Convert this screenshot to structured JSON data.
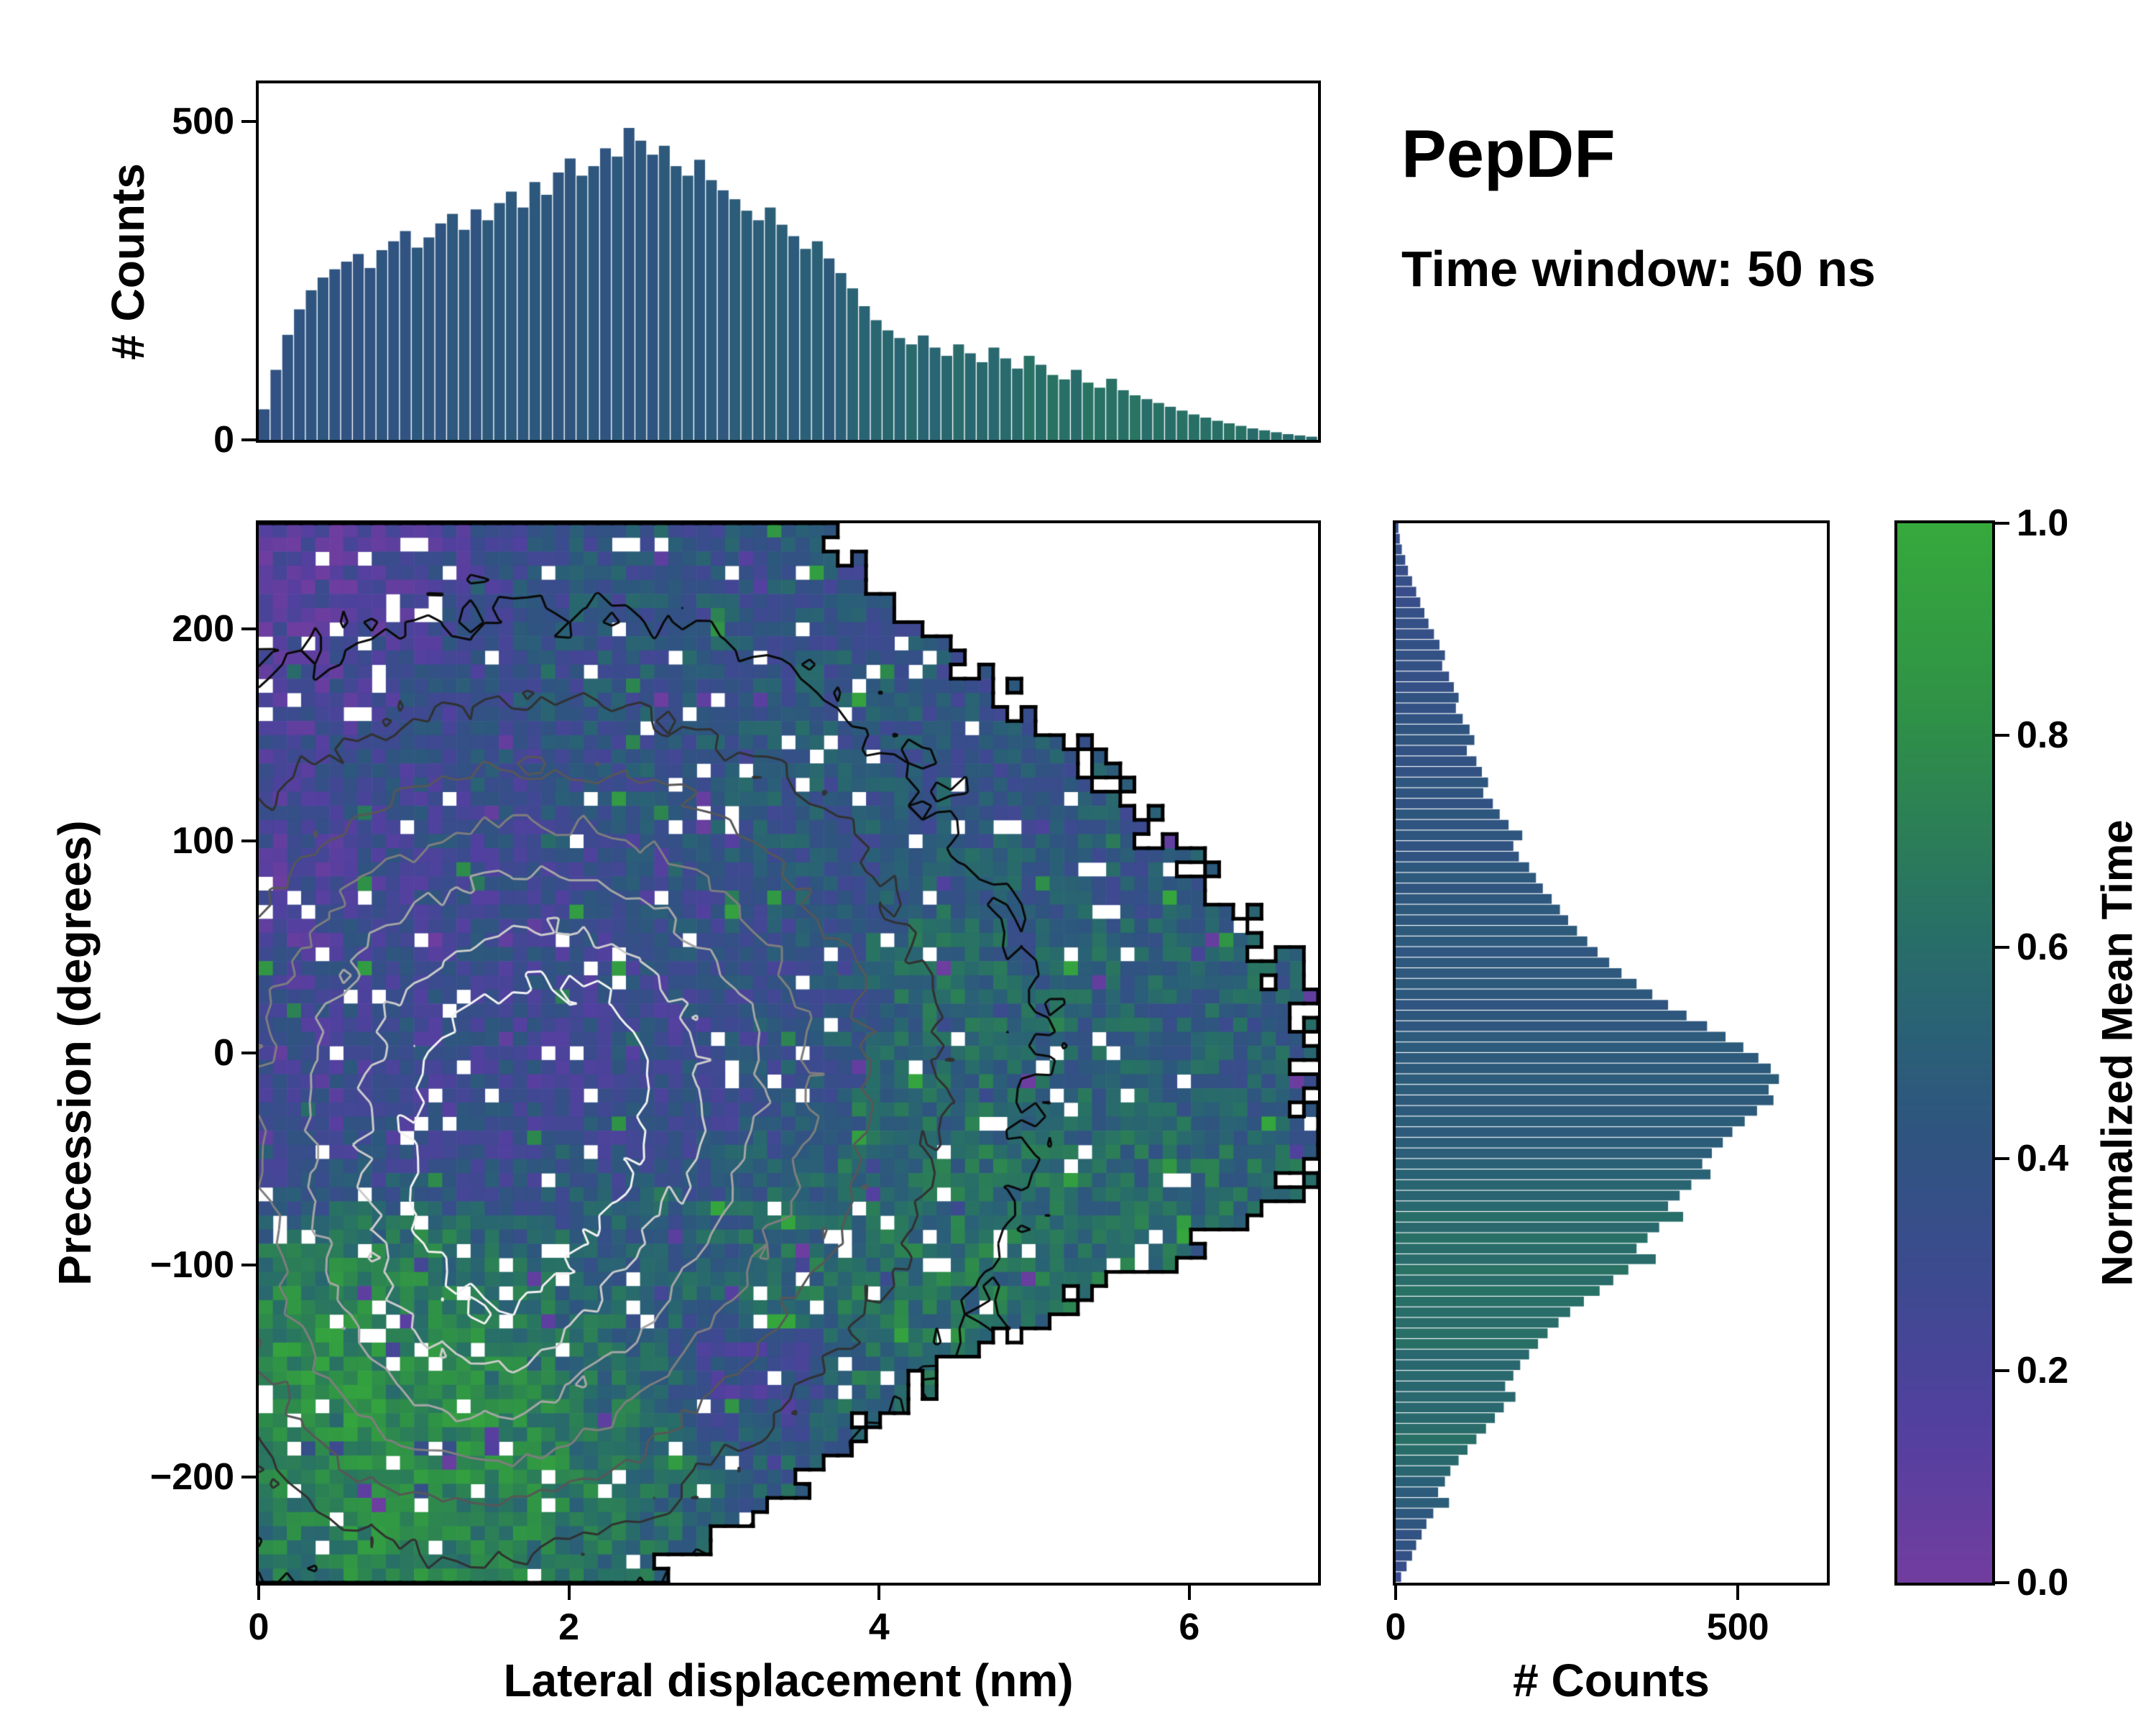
{
  "meta": {
    "title": "PepDF",
    "subtitle": "Time window: 50 ns"
  },
  "colormap": {
    "label": "Normalized Mean Time",
    "stops": [
      [
        0.0,
        "#713d9f"
      ],
      [
        0.15,
        "#52409f"
      ],
      [
        0.3,
        "#3b4b8e"
      ],
      [
        0.42,
        "#2f5480"
      ],
      [
        0.52,
        "#2a6176"
      ],
      [
        0.62,
        "#287066"
      ],
      [
        0.72,
        "#2c8055"
      ],
      [
        0.82,
        "#2f9147"
      ],
      [
        1.0,
        "#36a93c"
      ]
    ]
  },
  "axes": {
    "top": {
      "ylabel": "# Counts",
      "ymax": 560,
      "yticks": [
        {
          "label": "500",
          "value": 500
        },
        {
          "label": "0",
          "value": 0
        }
      ]
    },
    "main": {
      "xlabel": "Lateral displacement (nm)",
      "ylabel": "Precession (degrees)",
      "xlim": [
        0,
        6.83
      ],
      "ylim": [
        -250,
        250
      ],
      "xticks": [
        {
          "label": "0",
          "value": 0
        },
        {
          "label": "2",
          "value": 2
        },
        {
          "label": "4",
          "value": 4
        },
        {
          "label": "6",
          "value": 6
        }
      ],
      "yticks": [
        {
          "label": "200",
          "value": 200
        },
        {
          "label": "100",
          "value": 100
        },
        {
          "label": "0",
          "value": 0
        },
        {
          "label": "−100",
          "value": -100
        },
        {
          "label": "−200",
          "value": -200
        }
      ]
    },
    "right": {
      "xlabel": "# Counts",
      "xmax": 630,
      "xticks": [
        {
          "label": "0",
          "value": 0
        },
        {
          "label": "500",
          "value": 500
        }
      ]
    },
    "colorbar": {
      "label": "Normalized Mean Time",
      "ticks": [
        {
          "label": "1.0",
          "value": 1.0
        },
        {
          "label": "0.8",
          "value": 0.8
        },
        {
          "label": "0.6",
          "value": 0.6
        },
        {
          "label": "0.4",
          "value": 0.4
        },
        {
          "label": "0.2",
          "value": 0.2
        },
        {
          "label": "0.0",
          "value": 0.0
        }
      ]
    }
  },
  "chart_data": [
    {
      "id": "top_histogram",
      "type": "bar",
      "orientation": "vertical",
      "ylabel": "# Counts",
      "x_start": 0,
      "x_end": 6.83,
      "ylim": [
        0,
        560
      ],
      "values": [
        48,
        110,
        165,
        205,
        235,
        255,
        268,
        280,
        292,
        270,
        298,
        312,
        328,
        302,
        318,
        340,
        355,
        330,
        362,
        345,
        372,
        390,
        365,
        405,
        385,
        420,
        442,
        415,
        430,
        458,
        445,
        490,
        470,
        448,
        462,
        430,
        415,
        440,
        408,
        392,
        378,
        360,
        345,
        365,
        338,
        320,
        300,
        312,
        285,
        262,
        238,
        210,
        188,
        172,
        160,
        150,
        164,
        145,
        132,
        150,
        136,
        122,
        145,
        128,
        112,
        132,
        118,
        102,
        95,
        110,
        90,
        82,
        96,
        78,
        70,
        64,
        58,
        52,
        46,
        40,
        35,
        30,
        26,
        22,
        18,
        15,
        12,
        9,
        7,
        5
      ],
      "color_by": "normalized_mean_time",
      "color_anchors": [
        {
          "k": 0,
          "v": 0.42
        },
        {
          "k": 2.5,
          "v": 0.45
        },
        {
          "k": 3.8,
          "v": 0.5
        },
        {
          "k": 4.4,
          "v": 0.58
        },
        {
          "k": 5.5,
          "v": 0.62
        },
        {
          "k": 6.83,
          "v": 0.6
        }
      ]
    },
    {
      "id": "joint_heatmap",
      "type": "heatmap",
      "xlabel": "Lateral displacement (nm)",
      "ylabel": "Precession (degrees)",
      "xlim": [
        0,
        6.83
      ],
      "ylim": [
        -250,
        250
      ],
      "value_label": "Normalized Mean Time",
      "value_range": [
        0,
        1
      ],
      "grid_x": [
        0.2,
        0.6,
        1.0,
        1.4,
        1.8,
        2.2,
        2.6,
        3.0,
        3.4,
        3.8,
        4.2,
        4.6,
        5.0,
        5.4,
        5.8,
        6.2,
        6.6
      ],
      "grid_p": [
        238,
        213,
        188,
        163,
        138,
        113,
        88,
        63,
        38,
        13,
        -13,
        -38,
        -63,
        -88,
        -113,
        -138,
        -163,
        -188,
        -213,
        -238
      ],
      "values": [
        [
          0.12,
          0.15,
          0.2,
          0.28,
          0.35,
          0.38,
          0.42,
          0.4,
          0.38,
          null,
          null,
          null,
          null,
          null,
          null,
          null,
          null
        ],
        [
          0.15,
          0.12,
          0.22,
          0.3,
          0.38,
          0.4,
          0.42,
          0.4,
          0.42,
          0.38,
          null,
          null,
          null,
          null,
          null,
          null,
          null
        ],
        [
          0.18,
          0.22,
          0.28,
          0.35,
          0.4,
          0.38,
          0.42,
          0.44,
          0.4,
          0.42,
          0.38,
          null,
          null,
          null,
          null,
          null,
          null
        ],
        [
          0.2,
          0.25,
          0.3,
          0.32,
          0.38,
          0.42,
          0.4,
          0.42,
          0.44,
          0.42,
          0.4,
          0.42,
          null,
          null,
          null,
          null,
          null
        ],
        [
          0.22,
          0.3,
          0.28,
          0.35,
          0.3,
          0.38,
          0.42,
          0.4,
          0.44,
          0.42,
          0.44,
          0.4,
          0.42,
          null,
          null,
          null,
          null
        ],
        [
          0.2,
          0.28,
          0.32,
          0.3,
          0.35,
          0.32,
          0.38,
          0.42,
          0.44,
          0.42,
          0.4,
          0.44,
          0.42,
          0.44,
          null,
          null,
          null
        ],
        [
          0.18,
          0.25,
          0.3,
          0.28,
          0.32,
          0.35,
          0.3,
          0.38,
          0.42,
          0.4,
          0.44,
          0.46,
          0.42,
          0.44,
          0.4,
          null,
          null
        ],
        [
          0.2,
          0.28,
          0.25,
          0.3,
          0.28,
          0.32,
          0.35,
          0.38,
          0.4,
          0.42,
          0.55,
          0.5,
          0.46,
          0.44,
          0.48,
          0.45,
          null
        ],
        [
          0.22,
          0.3,
          0.28,
          0.32,
          0.3,
          0.28,
          0.32,
          0.35,
          0.38,
          0.4,
          0.6,
          0.55,
          0.5,
          0.55,
          0.48,
          0.5,
          null
        ],
        [
          0.25,
          0.3,
          0.32,
          0.28,
          0.3,
          0.32,
          0.3,
          0.35,
          0.38,
          0.42,
          0.55,
          0.6,
          0.52,
          0.48,
          0.5,
          0.46,
          0.48
        ],
        [
          0.22,
          0.28,
          0.3,
          0.32,
          0.28,
          0.3,
          0.32,
          0.35,
          0.4,
          0.45,
          0.5,
          0.55,
          0.58,
          0.52,
          0.48,
          0.5,
          0.46
        ],
        [
          0.25,
          0.3,
          0.28,
          0.3,
          0.32,
          0.35,
          0.32,
          0.38,
          0.42,
          0.48,
          0.55,
          0.6,
          0.55,
          0.58,
          0.52,
          0.55,
          0.5
        ],
        [
          0.35,
          0.42,
          0.38,
          0.35,
          0.38,
          0.4,
          0.42,
          0.45,
          0.5,
          0.55,
          0.6,
          0.58,
          0.62,
          0.6,
          0.55,
          0.58,
          null
        ],
        [
          0.55,
          0.6,
          0.65,
          0.55,
          0.5,
          0.48,
          0.45,
          0.5,
          0.55,
          0.6,
          0.62,
          0.65,
          0.6,
          0.62,
          0.58,
          null,
          null
        ],
        [
          0.7,
          0.75,
          0.72,
          0.68,
          0.6,
          0.52,
          0.48,
          0.52,
          0.58,
          0.62,
          0.65,
          0.62,
          0.6,
          null,
          null,
          null,
          null
        ],
        [
          0.78,
          0.8,
          0.75,
          0.72,
          0.62,
          0.55,
          0.5,
          0.25,
          0.3,
          0.58,
          0.62,
          0.6,
          null,
          null,
          null,
          null,
          null
        ],
        [
          0.8,
          0.82,
          0.78,
          0.75,
          0.68,
          0.6,
          0.55,
          0.3,
          0.25,
          0.55,
          null,
          null,
          null,
          null,
          null,
          null,
          null
        ],
        [
          0.75,
          0.8,
          0.82,
          0.78,
          0.72,
          0.65,
          0.58,
          0.5,
          0.45,
          null,
          null,
          null,
          null,
          null,
          null,
          null,
          null
        ],
        [
          0.7,
          0.78,
          0.8,
          0.75,
          0.7,
          0.62,
          0.55,
          0.5,
          null,
          null,
          null,
          null,
          null,
          null,
          null,
          null,
          null
        ],
        [
          0.65,
          0.75,
          0.78,
          0.72,
          0.68,
          0.6,
          null,
          null,
          null,
          null,
          null,
          null,
          null,
          null,
          null,
          null,
          null
        ]
      ],
      "boundary_xmax_by_p": [
        [
          250,
          3.7
        ],
        [
          215,
          4.0
        ],
        [
          190,
          4.4
        ],
        [
          165,
          4.9
        ],
        [
          140,
          5.3
        ],
        [
          115,
          5.6
        ],
        [
          90,
          6.0
        ],
        [
          65,
          6.4
        ],
        [
          40,
          6.65
        ],
        [
          10,
          6.8
        ],
        [
          -30,
          6.8
        ],
        [
          -55,
          6.8
        ],
        [
          -75,
          6.4
        ],
        [
          -95,
          6.0
        ],
        [
          -115,
          5.3
        ],
        [
          -140,
          4.7
        ],
        [
          -165,
          4.1
        ],
        [
          -190,
          3.7
        ],
        [
          -215,
          3.3
        ],
        [
          -240,
          2.7
        ],
        [
          -250,
          2.4
        ]
      ],
      "contours": {
        "levels": [
          0.1,
          0.22,
          0.36,
          0.5,
          0.64,
          0.78,
          0.9
        ],
        "color_low": "#0a0a0a",
        "color_high": "#f2f2f2",
        "density_center": [
          1.8,
          -15
        ],
        "density_sigma": [
          1.5,
          105
        ],
        "secondary_blob": {
          "center": [
            1.3,
            -150
          ],
          "sigma": [
            0.9,
            60
          ],
          "amp": 0.35
        }
      }
    },
    {
      "id": "right_histogram",
      "type": "bar",
      "orientation": "horizontal",
      "xlabel": "# Counts",
      "p_start": 250,
      "p_end": -250,
      "xlim": [
        0,
        630
      ],
      "values": [
        4,
        6,
        9,
        14,
        18,
        24,
        30,
        36,
        42,
        48,
        56,
        64,
        72,
        68,
        78,
        85,
        92,
        88,
        98,
        108,
        115,
        104,
        118,
        126,
        135,
        128,
        142,
        152,
        165,
        185,
        172,
        180,
        195,
        205,
        215,
        228,
        240,
        252,
        265,
        280,
        295,
        312,
        330,
        352,
        375,
        398,
        425,
        455,
        482,
        508,
        530,
        548,
        560,
        545,
        552,
        528,
        510,
        492,
        478,
        462,
        448,
        460,
        432,
        415,
        398,
        420,
        385,
        368,
        352,
        380,
        340,
        318,
        298,
        275,
        255,
        238,
        222,
        208,
        195,
        182,
        172,
        160,
        175,
        158,
        145,
        132,
        118,
        105,
        92,
        80,
        72,
        62,
        78,
        55,
        45,
        38,
        30,
        24,
        16,
        8
      ],
      "color_by": "normalized_mean_time",
      "color_anchors": [
        {
          "k": -250,
          "v": 0.3
        },
        {
          "k": -215,
          "v": 0.45
        },
        {
          "k": -185,
          "v": 0.6
        },
        {
          "k": -150,
          "v": 0.58
        },
        {
          "k": -110,
          "v": 0.62
        },
        {
          "k": -80,
          "v": 0.58
        },
        {
          "k": -40,
          "v": 0.5
        },
        {
          "k": 0,
          "v": 0.46
        },
        {
          "k": 50,
          "v": 0.44
        },
        {
          "k": 150,
          "v": 0.4
        },
        {
          "k": 250,
          "v": 0.33
        }
      ]
    }
  ],
  "render_hints": {
    "seed": 20240607,
    "bins_x": 75,
    "bins_y": 75,
    "noise_amp": 0.17,
    "hole_prob": 0.045,
    "spike_prob": 0.05
  }
}
